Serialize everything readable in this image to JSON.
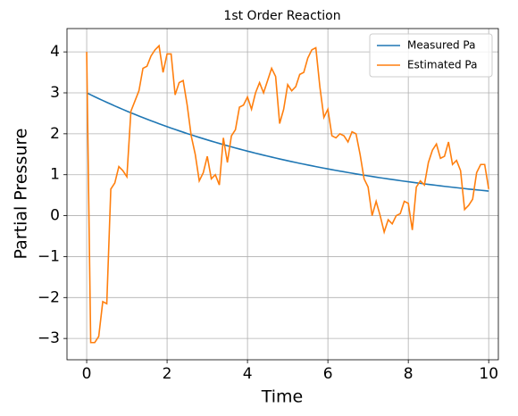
{
  "chart_data": {
    "type": "line",
    "title": "1st Order Reaction",
    "x_label": "Time",
    "y_label": "Partial Pressure",
    "x": [
      0,
      0.1,
      0.2,
      0.3,
      0.4,
      0.5,
      0.6,
      0.7,
      0.8,
      0.9,
      1.0,
      1.1,
      1.2,
      1.3,
      1.4,
      1.5,
      1.6,
      1.7,
      1.8,
      1.9,
      2.0,
      2.1,
      2.2,
      2.3,
      2.4,
      2.5,
      2.6,
      2.7,
      2.8,
      2.9,
      3.0,
      3.1,
      3.2,
      3.3,
      3.4,
      3.5,
      3.6,
      3.7,
      3.8,
      3.9,
      4.0,
      4.1,
      4.2,
      4.3,
      4.4,
      4.5,
      4.6,
      4.7,
      4.8,
      4.9,
      5.0,
      5.1,
      5.2,
      5.3,
      5.4,
      5.5,
      5.6,
      5.7,
      5.8,
      5.9,
      6.0,
      6.1,
      6.2,
      6.3,
      6.4,
      6.5,
      6.6,
      6.7,
      6.8,
      6.9,
      7.0,
      7.1,
      7.2,
      7.3,
      7.4,
      7.5,
      7.6,
      7.7,
      7.8,
      7.9,
      8.0,
      8.1,
      8.2,
      8.3,
      8.4,
      8.5,
      8.6,
      8.7,
      8.8,
      8.9,
      9.0,
      9.1,
      9.2,
      9.3,
      9.4,
      9.5,
      9.6,
      9.7,
      9.8,
      9.9,
      10
    ],
    "series": [
      {
        "name": "Measured Pa",
        "color": "#1f77b4",
        "values": [
          3.0,
          2.952,
          2.905,
          2.858,
          2.813,
          2.768,
          2.724,
          2.68,
          2.637,
          2.595,
          2.554,
          2.513,
          2.473,
          2.434,
          2.395,
          2.357,
          2.319,
          2.282,
          2.246,
          2.21,
          2.174,
          2.139,
          2.105,
          2.072,
          2.039,
          2.006,
          1.974,
          1.942,
          1.911,
          1.881,
          1.851,
          1.821,
          1.792,
          1.764,
          1.735,
          1.708,
          1.68,
          1.653,
          1.627,
          1.601,
          1.576,
          1.551,
          1.526,
          1.502,
          1.478,
          1.454,
          1.431,
          1.408,
          1.385,
          1.363,
          1.341,
          1.32,
          1.299,
          1.278,
          1.258,
          1.238,
          1.218,
          1.198,
          1.179,
          1.16,
          1.142,
          1.124,
          1.106,
          1.088,
          1.071,
          1.054,
          1.037,
          1.02,
          1.004,
          0.988,
          0.972,
          0.957,
          0.941,
          0.926,
          0.912,
          0.897,
          0.883,
          0.869,
          0.855,
          0.841,
          0.828,
          0.815,
          0.802,
          0.789,
          0.776,
          0.764,
          0.752,
          0.74,
          0.728,
          0.716,
          0.705,
          0.694,
          0.683,
          0.672,
          0.661,
          0.65,
          0.64,
          0.63,
          0.62,
          0.61,
          0.6
        ]
      },
      {
        "name": "Estimated Pa",
        "color": "#ff7f0e",
        "values": [
          4.0,
          -3.1,
          -3.1,
          -2.95,
          -2.1,
          -2.15,
          0.65,
          0.8,
          1.2,
          1.1,
          0.95,
          2.55,
          2.8,
          3.05,
          3.6,
          3.65,
          3.9,
          4.05,
          4.15,
          3.5,
          3.95,
          3.95,
          2.95,
          3.25,
          3.3,
          2.7,
          1.95,
          1.5,
          0.85,
          1.05,
          1.45,
          0.9,
          1.0,
          0.75,
          1.9,
          1.3,
          1.95,
          2.1,
          2.65,
          2.7,
          2.9,
          2.6,
          3.0,
          3.25,
          3.0,
          3.3,
          3.6,
          3.4,
          2.25,
          2.6,
          3.2,
          3.05,
          3.15,
          3.45,
          3.5,
          3.85,
          4.05,
          4.1,
          3.15,
          2.4,
          2.6,
          1.95,
          1.9,
          2.0,
          1.95,
          1.8,
          2.05,
          2.0,
          1.5,
          0.9,
          0.7,
          0.0,
          0.35,
          0.0,
          -0.4,
          -0.1,
          -0.2,
          0.0,
          0.05,
          0.35,
          0.3,
          -0.35,
          0.7,
          0.85,
          0.75,
          1.3,
          1.6,
          1.75,
          1.4,
          1.45,
          1.8,
          1.25,
          1.35,
          1.1,
          0.15,
          0.25,
          0.4,
          1.05,
          1.25,
          1.25,
          0.65
        ]
      }
    ],
    "xlim": [
      -0.49,
      10.24
    ],
    "xticks": [
      0,
      2,
      4,
      6,
      8,
      10
    ],
    "ylim": [
      -3.52,
      4.57
    ],
    "yticks": [
      {
        "value": -3,
        "label": "−3"
      },
      {
        "value": -2,
        "label": "−2"
      },
      {
        "value": -1,
        "label": "−1"
      },
      0,
      1,
      2,
      3,
      4
    ],
    "grid": true,
    "legend": "upper right"
  }
}
